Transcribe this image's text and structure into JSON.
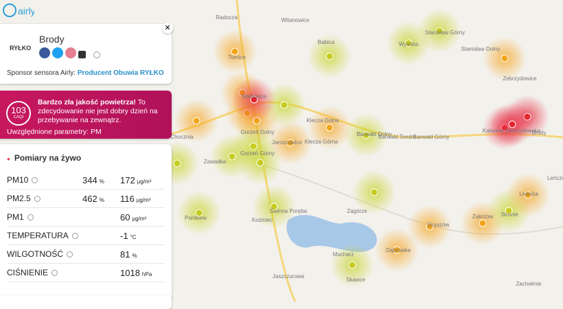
{
  "logo": "airly",
  "sensor": {
    "name": "Brody",
    "sponsor_logo": "RYŁKO",
    "sponsor_prefix": "Sponsor sensora Airly:",
    "sponsor_name": "Producent Obuwia RYŁKO"
  },
  "alert": {
    "caqi": 103,
    "caqi_label": "CAQI",
    "headline": "Bardzo zła jakość powietrza!",
    "message": "To zdecydowanie nie jest dobry dzień na przebywanie na zewnątrz.",
    "params": "Uwzględnione parametry: PM"
  },
  "measurements": {
    "title": "Pomiary na żywo",
    "rows": [
      {
        "name": "PM10",
        "percent": 344,
        "percent_unit": "%",
        "value": 172,
        "unit": "µg/m³"
      },
      {
        "name": "PM2.5",
        "percent": 462,
        "percent_unit": "%",
        "value": 116,
        "unit": "µg/m³"
      },
      {
        "name": "PM1",
        "value": 60,
        "unit": "µg/m³"
      },
      {
        "name": "TEMPERATURA",
        "value": -1,
        "unit": "°C"
      },
      {
        "name": "WILGOTNOŚĆ",
        "value": 81,
        "unit": "%"
      },
      {
        "name": "CIŚNIENIE",
        "value": 1018,
        "unit": "hPa"
      }
    ]
  },
  "map": {
    "places": [
      "Radocza",
      "Witanowice",
      "Babica",
      "Wysoka",
      "Stanisław Górny",
      "Stanisław Dolny",
      "Tomice",
      "Zebrzydowice",
      "Wadowice",
      "Klecza Dolna",
      "Klecza Górna",
      "Barwałd Dolny",
      "Barwałd Średni",
      "Barwałd Górny",
      "Kalwaria Zebrzydowska",
      "Brody",
      "Chocznia",
      "Gorzeń Dolny",
      "Gorzeń Górny",
      "Jaroszowice",
      "Zawadka",
      "Leśnica",
      "Zagórze",
      "Świnna Poręba",
      "Koziniec",
      "Ponikiew",
      "Stryszów",
      "Zakrzów",
      "Stronie",
      "Leńcze",
      "Dąbrówka",
      "Mucharz",
      "Skawce",
      "Jaszczurowa",
      "Zachełmie"
    ]
  }
}
